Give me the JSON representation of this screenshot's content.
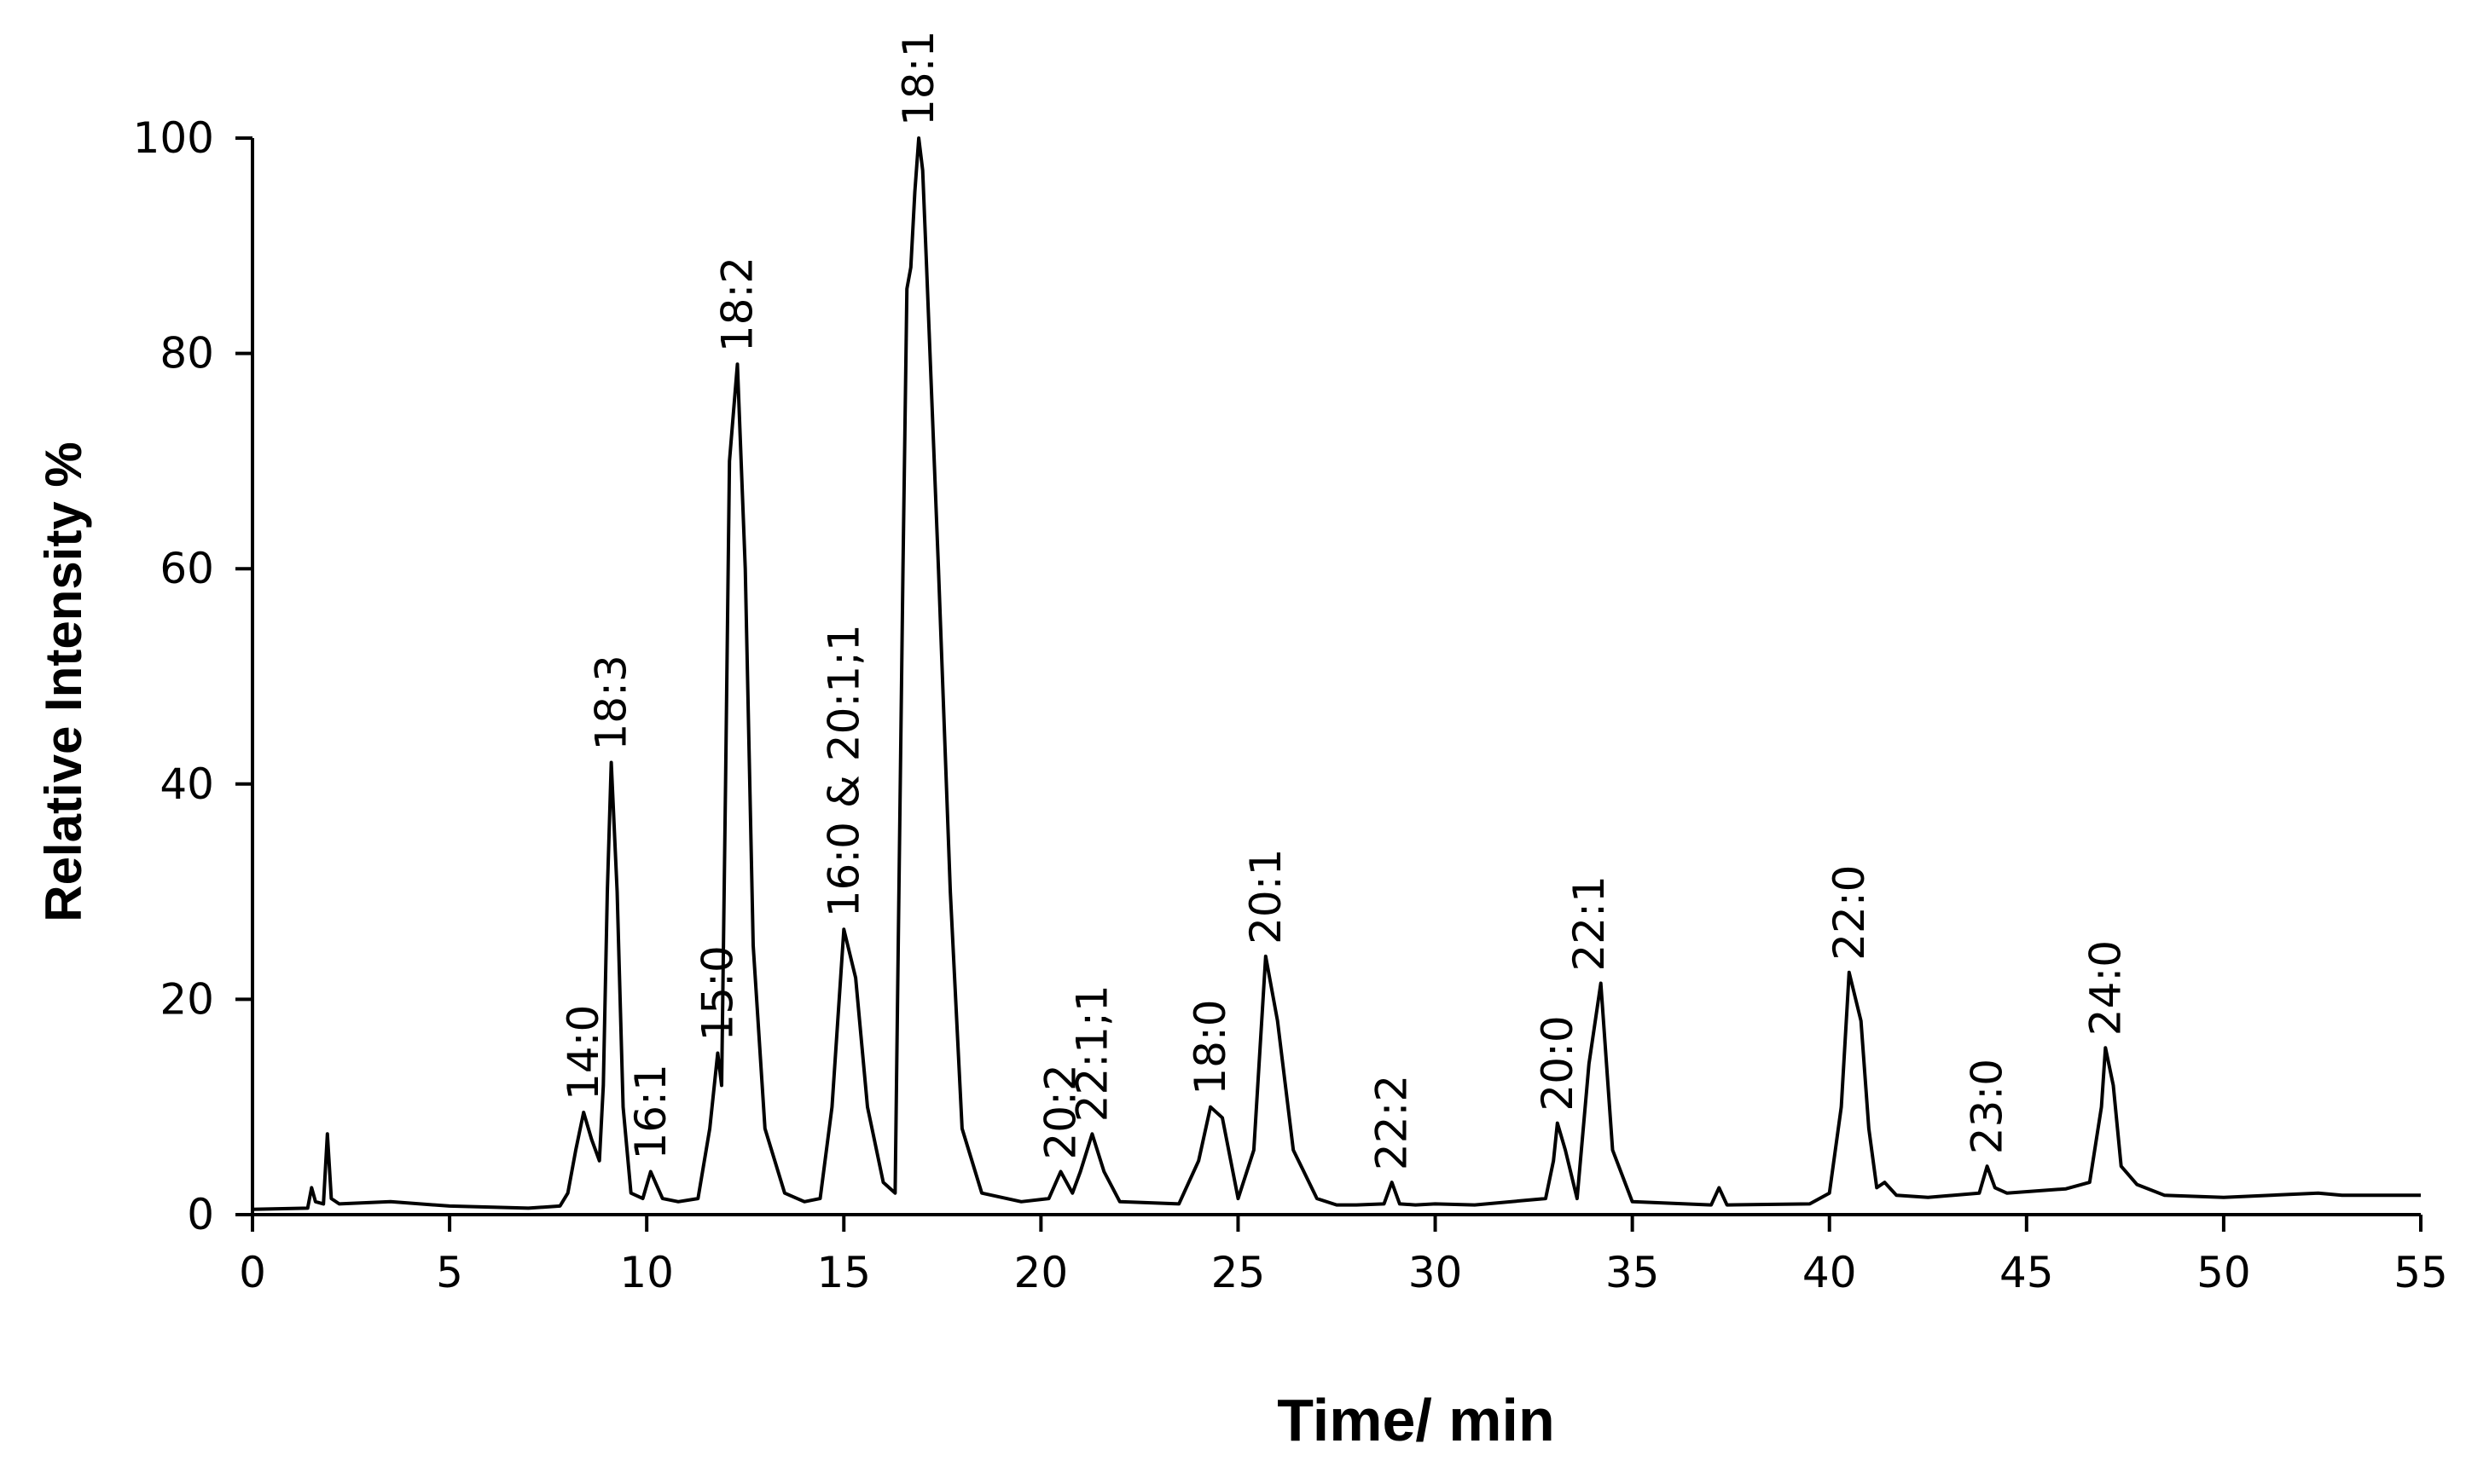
{
  "chart_data": {
    "type": "line",
    "xlabel": "Time/ min",
    "ylabel": "Relative Intensity %",
    "xlim": [
      0,
      55
    ],
    "ylim": [
      0,
      100
    ],
    "xticks": [
      0,
      5,
      10,
      15,
      20,
      25,
      30,
      35,
      40,
      45,
      50,
      55
    ],
    "yticks": [
      0,
      20,
      40,
      60,
      80,
      100
    ],
    "grid": false,
    "line_color": "#000000",
    "series": [
      {
        "x": [
          0,
          1.4,
          1.5,
          1.6,
          1.8,
          1.9,
          2.0,
          2.2,
          3.5,
          5,
          7,
          7.8,
          8.0,
          8.2,
          8.4,
          8.6,
          8.8,
          8.9,
          9.0,
          9.1,
          9.25,
          9.4,
          9.6,
          9.9,
          10.1,
          10.4,
          10.8,
          11.3,
          11.6,
          11.8,
          11.9,
          12.0,
          12.1,
          12.3,
          12.5,
          12.7,
          13.0,
          13.5,
          14.0,
          14.4,
          14.7,
          15.0,
          15.3,
          15.6,
          16.0,
          16.3,
          16.5,
          16.6,
          16.7,
          16.8,
          16.9,
          17.0,
          17.1,
          17.4,
          17.7,
          18.0,
          18.5,
          19.5,
          20.2,
          20.5,
          20.8,
          21.0,
          21.3,
          21.6,
          22.0,
          23.5,
          24.0,
          24.3,
          24.6,
          25.0,
          25.4,
          25.7,
          26.0,
          26.4,
          27.0,
          27.5,
          28.0,
          28.7,
          28.9,
          29.1,
          29.5,
          30.0,
          31.0,
          32.8,
          33.0,
          33.1,
          33.3,
          33.6,
          33.9,
          34.2,
          34.5,
          35.0,
          37.0,
          37.2,
          37.4,
          39.5,
          40.0,
          40.3,
          40.5,
          40.8,
          41.0,
          41.2,
          41.4,
          41.7,
          42.5,
          43.8,
          44.0,
          44.2,
          44.5,
          46.0,
          46.6,
          46.9,
          47.0,
          47.2,
          47.4,
          47.8,
          48.5,
          50.0,
          52.4,
          53.0,
          55.0
        ],
        "y": [
          0.5,
          0.6,
          2.5,
          1.2,
          1.0,
          7.5,
          1.5,
          1.0,
          1.2,
          0.8,
          0.6,
          0.8,
          2.0,
          6.0,
          9.5,
          7.0,
          5.0,
          12.0,
          30.0,
          42.0,
          30.0,
          10.0,
          2.0,
          1.5,
          4.0,
          1.5,
          1.2,
          1.5,
          8.0,
          15.0,
          12.0,
          40.0,
          70.0,
          79.0,
          60.0,
          25.0,
          8.0,
          2.0,
          1.2,
          1.5,
          10.0,
          26.5,
          22.0,
          10.0,
          3.0,
          2.0,
          60.0,
          86.0,
          88.0,
          95.0,
          100.0,
          97.0,
          88.0,
          60.0,
          30.0,
          8.0,
          2.0,
          1.2,
          1.5,
          4.0,
          2.0,
          4.0,
          7.5,
          4.0,
          1.2,
          1.0,
          5.0,
          10.0,
          9.0,
          1.5,
          6.0,
          24.0,
          18.0,
          6.0,
          1.5,
          0.9,
          0.9,
          1.0,
          3.0,
          1.0,
          0.9,
          1.0,
          0.9,
          1.5,
          5.0,
          8.5,
          6.0,
          1.5,
          14.0,
          21.5,
          6.0,
          1.2,
          0.9,
          2.5,
          0.9,
          1.0,
          2.0,
          10.0,
          22.5,
          18.0,
          8.0,
          2.5,
          3.0,
          1.8,
          1.6,
          2.0,
          4.5,
          2.5,
          2.0,
          2.4,
          3.0,
          10.0,
          15.5,
          12.0,
          4.5,
          2.8,
          1.8,
          1.6,
          2.0,
          1.8,
          1.8
        ]
      }
    ],
    "annotations": [
      {
        "text": "14:0",
        "x": 8.4,
        "y": 9.5
      },
      {
        "text": "18:3",
        "x": 9.1,
        "y": 42.0
      },
      {
        "text": "16:1",
        "x": 10.1,
        "y": 4.0
      },
      {
        "text": "15:0",
        "x": 11.8,
        "y": 15.0
      },
      {
        "text": "18:2",
        "x": 12.3,
        "y": 79.0
      },
      {
        "text": "16:0 & 20:1;1",
        "x": 15.0,
        "y": 26.5
      },
      {
        "text": "18:1",
        "x": 16.9,
        "y": 100.0
      },
      {
        "text": "20:2",
        "x": 20.5,
        "y": 4.0
      },
      {
        "text": "22:1;1",
        "x": 21.3,
        "y": 7.5
      },
      {
        "text": "18:0",
        "x": 24.3,
        "y": 10.0
      },
      {
        "text": "20:1",
        "x": 25.7,
        "y": 24.0
      },
      {
        "text": "22:2",
        "x": 28.9,
        "y": 3.0
      },
      {
        "text": "20:0",
        "x": 33.1,
        "y": 8.5
      },
      {
        "text": "22:1",
        "x": 33.9,
        "y": 21.5
      },
      {
        "text": "22:0",
        "x": 40.5,
        "y": 22.5
      },
      {
        "text": "23:0",
        "x": 44.0,
        "y": 4.5
      },
      {
        "text": "24:0",
        "x": 47.0,
        "y": 15.5
      }
    ]
  }
}
